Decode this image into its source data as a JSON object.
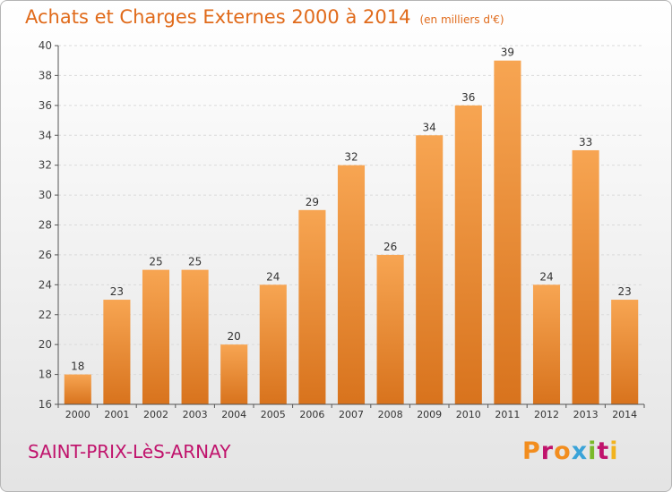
{
  "header": {
    "title": "Achats et Charges Externes 2000 à 2014",
    "unit": "(en milliers d'€)"
  },
  "footer": {
    "commune": "SAINT-PRIX-LèS-ARNAY",
    "brand": "Proxiti",
    "brand_colors": [
      "#f28d1e",
      "#c0136c",
      "#f28d1e",
      "#3aa3d8",
      "#7ab929",
      "#c0136c",
      "#f2b31e"
    ]
  },
  "colors": {
    "title": "#e06a1a",
    "bar_top": "#f7a552",
    "bar_bottom": "#d8731d",
    "axis": "#555555",
    "grid": "#dadada"
  },
  "chart_data": {
    "type": "bar",
    "categories": [
      "2000",
      "2001",
      "2002",
      "2003",
      "2004",
      "2005",
      "2006",
      "2007",
      "2008",
      "2009",
      "2010",
      "2011",
      "2012",
      "2013",
      "2014"
    ],
    "values": [
      18,
      23,
      25,
      25,
      20,
      24,
      29,
      32,
      26,
      34,
      36,
      39,
      24,
      33,
      23
    ],
    "ylim": [
      16,
      40
    ],
    "yticks": [
      16,
      18,
      20,
      22,
      24,
      26,
      28,
      30,
      32,
      34,
      36,
      38,
      40
    ],
    "grid": "horizontal dashed",
    "legend": "none"
  }
}
